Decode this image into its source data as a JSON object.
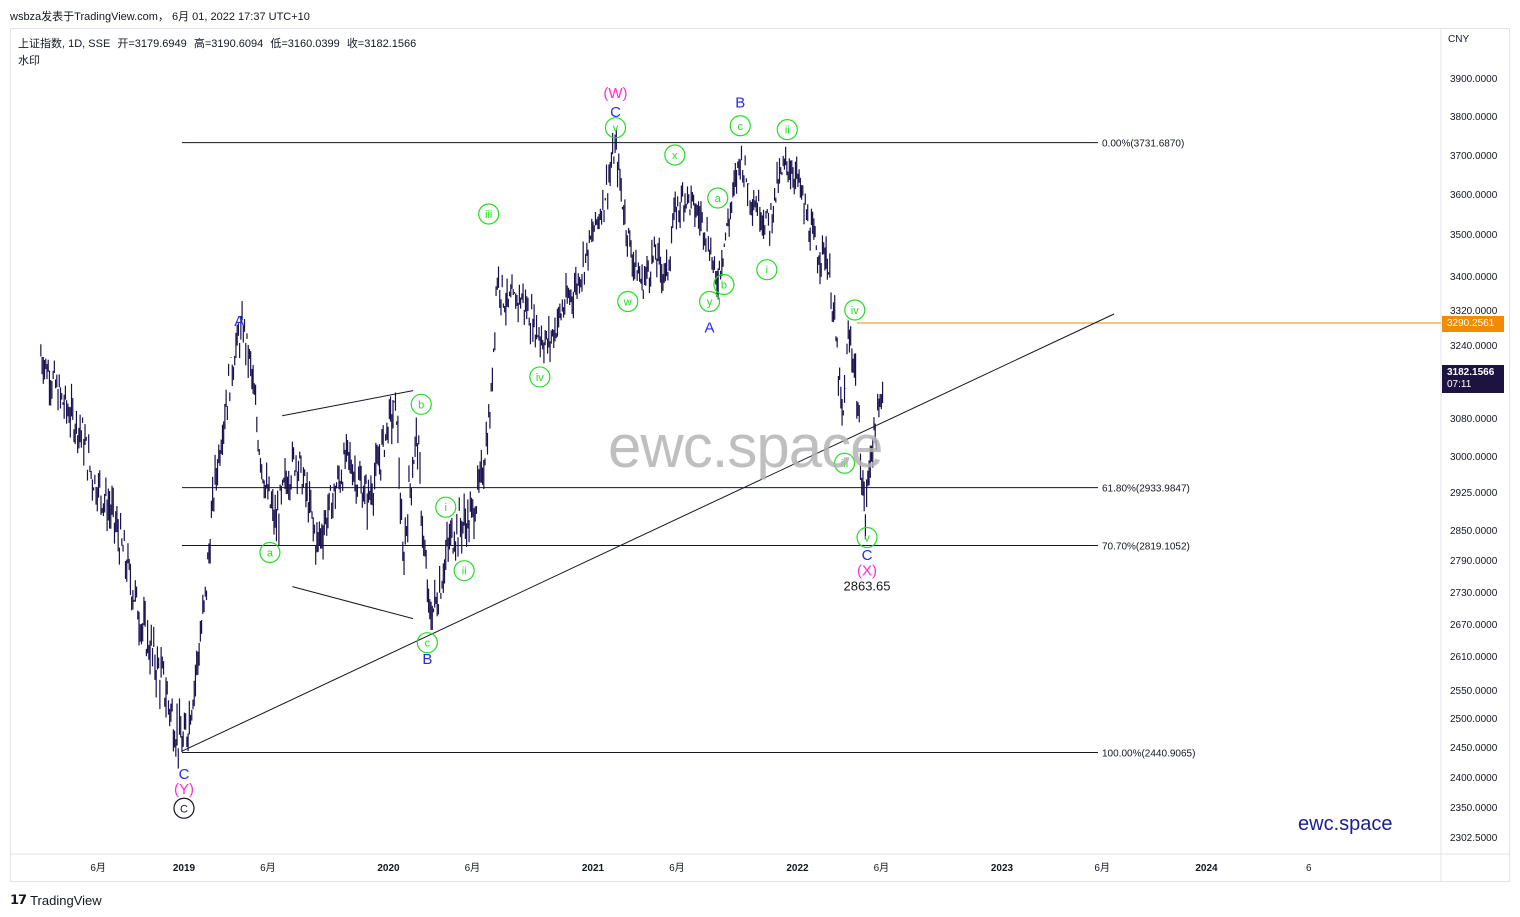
{
  "header": {
    "credit": "wsbza发表于TradingView.com， 6月 01, 2022 17:37 UTC+10"
  },
  "symbol": {
    "name": "上证指数, 1D, SSE",
    "open": "开=3179.6949",
    "high": "高=3190.6094",
    "low": "低=3160.0399",
    "close": "收=3182.1566",
    "watermark_label": "水印"
  },
  "watermarks": {
    "center": "ewc.space",
    "corner": "ewc.space"
  },
  "footer": {
    "logo": "𝟭𝟳",
    "brand": "TradingView"
  },
  "colors": {
    "green_label": "#22dd22",
    "blue_label": "#2a2ae8",
    "magenta_label": "#ff2bd6",
    "price_line": "#f28b00",
    "bars": "#17114d",
    "current_price_bg": "#1c1340"
  },
  "chart_data": {
    "type": "candlestick",
    "currency": "CNY",
    "y_ticks": [
      "3900.0000",
      "3800.0000",
      "3700.0000",
      "3600.0000",
      "3500.0000",
      "3400.0000",
      "3320.0000",
      "3240.0000",
      "3080.0000",
      "3000.0000",
      "2925.0000",
      "2850.0000",
      "2790.0000",
      "2730.0000",
      "2670.0000",
      "2610.0000",
      "2550.0000",
      "2500.0000",
      "2450.0000",
      "2400.0000",
      "2350.0000",
      "2302.5000"
    ],
    "x_ticks": [
      "6月",
      "2019",
      "6月",
      "2020",
      "6月",
      "2021",
      "6月",
      "2022",
      "6月",
      "2023",
      "6月",
      "2024",
      "6"
    ],
    "current_price": "3182.1566",
    "countdown": "07:11",
    "marked_price": "3290.2561",
    "fib_levels": [
      {
        "label": "0.00%(3731.6870)",
        "value": 3731.687
      },
      {
        "label": "61.80%(2933.9847)",
        "value": 2933.9847
      },
      {
        "label": "70.70%(2819.1052)",
        "value": 2819.1052
      },
      {
        "label": "100.00%(2440.9065)",
        "value": 2440.9065
      }
    ],
    "low_annotation": "2863.65",
    "price_path": [
      [
        2018.3,
        3220
      ],
      [
        2018.4,
        3120
      ],
      [
        2018.5,
        3050
      ],
      [
        2018.55,
        2960
      ],
      [
        2018.65,
        2880
      ],
      [
        2018.72,
        2780
      ],
      [
        2018.8,
        2660
      ],
      [
        2018.9,
        2560
      ],
      [
        2018.96,
        2480
      ],
      [
        2019.0,
        2450
      ],
      [
        2019.05,
        2560
      ],
      [
        2019.1,
        2700
      ],
      [
        2019.15,
        2940
      ],
      [
        2019.2,
        3100
      ],
      [
        2019.25,
        3230
      ],
      [
        2019.29,
        3280
      ],
      [
        2019.33,
        3180
      ],
      [
        2019.36,
        3050
      ],
      [
        2019.4,
        2930
      ],
      [
        2019.45,
        2860
      ],
      [
        2019.5,
        2950
      ],
      [
        2019.55,
        3000
      ],
      [
        2019.6,
        2920
      ],
      [
        2019.65,
        2820
      ],
      [
        2019.7,
        2880
      ],
      [
        2019.75,
        2940
      ],
      [
        2019.8,
        3000
      ],
      [
        2019.85,
        2950
      ],
      [
        2019.9,
        2910
      ],
      [
        2019.95,
        2980
      ],
      [
        2020.0,
        3070
      ],
      [
        2020.04,
        3100
      ],
      [
        2020.07,
        2780
      ],
      [
        2020.1,
        2920
      ],
      [
        2020.14,
        3050
      ],
      [
        2020.17,
        2830
      ],
      [
        2020.2,
        2680
      ],
      [
        2020.24,
        2720
      ],
      [
        2020.3,
        2830
      ],
      [
        2020.35,
        2860
      ],
      [
        2020.4,
        2870
      ],
      [
        2020.45,
        2940
      ],
      [
        2020.5,
        3100
      ],
      [
        2020.53,
        3400
      ],
      [
        2020.58,
        3330
      ],
      [
        2020.65,
        3350
      ],
      [
        2020.72,
        3280
      ],
      [
        2020.78,
        3240
      ],
      [
        2020.85,
        3320
      ],
      [
        2020.92,
        3380
      ],
      [
        2021.0,
        3500
      ],
      [
        2021.05,
        3580
      ],
      [
        2021.11,
        3720
      ],
      [
        2021.15,
        3560
      ],
      [
        2021.19,
        3450
      ],
      [
        2021.24,
        3380
      ],
      [
        2021.3,
        3450
      ],
      [
        2021.36,
        3400
      ],
      [
        2021.4,
        3550
      ],
      [
        2021.45,
        3600
      ],
      [
        2021.5,
        3560
      ],
      [
        2021.55,
        3520
      ],
      [
        2021.58,
        3450
      ],
      [
        2021.6,
        3380
      ],
      [
        2021.63,
        3450
      ],
      [
        2021.67,
        3550
      ],
      [
        2021.72,
        3700
      ],
      [
        2021.77,
        3600
      ],
      [
        2021.82,
        3560
      ],
      [
        2021.86,
        3520
      ],
      [
        2021.9,
        3620
      ],
      [
        2021.95,
        3680
      ],
      [
        2022.0,
        3640
      ],
      [
        2022.05,
        3530
      ],
      [
        2022.1,
        3450
      ],
      [
        2022.14,
        3460
      ],
      [
        2022.18,
        3300
      ],
      [
        2022.22,
        3060
      ],
      [
        2022.25,
        3260
      ],
      [
        2022.28,
        3200
      ],
      [
        2022.31,
        2990
      ],
      [
        2022.33,
        2870
      ],
      [
        2022.36,
        3020
      ],
      [
        2022.4,
        3080
      ],
      [
        2022.42,
        3182
      ]
    ],
    "wave_labels": [
      {
        "text": "A",
        "t": 2019.27,
        "v": 3295,
        "style": "blue"
      },
      {
        "text": "C",
        "t": 2019.0,
        "v": 2405,
        "style": "blue"
      },
      {
        "text": "(Y)",
        "t": 2019.0,
        "v": 2380,
        "style": "magenta"
      },
      {
        "text": "C",
        "t": 2019.0,
        "v": 2348,
        "style": "circle-black"
      },
      {
        "text": "a",
        "t": 2019.42,
        "v": 2805,
        "style": "circle-green"
      },
      {
        "text": "b",
        "t": 2020.16,
        "v": 3110,
        "style": "circle-green"
      },
      {
        "text": "c",
        "t": 2020.19,
        "v": 2635,
        "style": "circle-green"
      },
      {
        "text": "B",
        "t": 2020.19,
        "v": 2605,
        "style": "blue"
      },
      {
        "text": "i",
        "t": 2020.28,
        "v": 2895,
        "style": "circle-green"
      },
      {
        "text": "ii",
        "t": 2020.37,
        "v": 2770,
        "style": "circle-green"
      },
      {
        "text": "iii",
        "t": 2020.49,
        "v": 3550,
        "style": "circle-green"
      },
      {
        "text": "iv",
        "t": 2020.74,
        "v": 3170,
        "style": "circle-green"
      },
      {
        "text": "w",
        "t": 2021.17,
        "v": 3340,
        "style": "circle-green"
      },
      {
        "text": "v",
        "t": 2021.11,
        "v": 3770,
        "style": "circle-green"
      },
      {
        "text": "C",
        "t": 2021.11,
        "v": 3810,
        "style": "blue"
      },
      {
        "text": "(W)",
        "t": 2021.11,
        "v": 3860,
        "style": "magenta"
      },
      {
        "text": "x",
        "t": 2021.4,
        "v": 3700,
        "style": "circle-green"
      },
      {
        "text": "a",
        "t": 2021.61,
        "v": 3590,
        "style": "circle-green"
      },
      {
        "text": "b",
        "t": 2021.64,
        "v": 3380,
        "style": "circle-green"
      },
      {
        "text": "y",
        "t": 2021.57,
        "v": 3340,
        "style": "circle-green"
      },
      {
        "text": "A",
        "t": 2021.57,
        "v": 3280,
        "style": "blue"
      },
      {
        "text": "c",
        "t": 2021.72,
        "v": 3775,
        "style": "circle-green"
      },
      {
        "text": "B",
        "t": 2021.72,
        "v": 3835,
        "style": "blue"
      },
      {
        "text": "i",
        "t": 2021.85,
        "v": 3415,
        "style": "circle-green"
      },
      {
        "text": "ii",
        "t": 2021.95,
        "v": 3765,
        "style": "circle-green"
      },
      {
        "text": "iv",
        "t": 2022.28,
        "v": 3320,
        "style": "circle-green"
      },
      {
        "text": "iii",
        "t": 2022.23,
        "v": 2985,
        "style": "circle-green"
      },
      {
        "text": "v",
        "t": 2022.34,
        "v": 2835,
        "style": "circle-green"
      },
      {
        "text": "C",
        "t": 2022.34,
        "v": 2800,
        "style": "blue"
      },
      {
        "text": "(X)",
        "t": 2022.34,
        "v": 2770,
        "style": "magenta"
      }
    ]
  }
}
